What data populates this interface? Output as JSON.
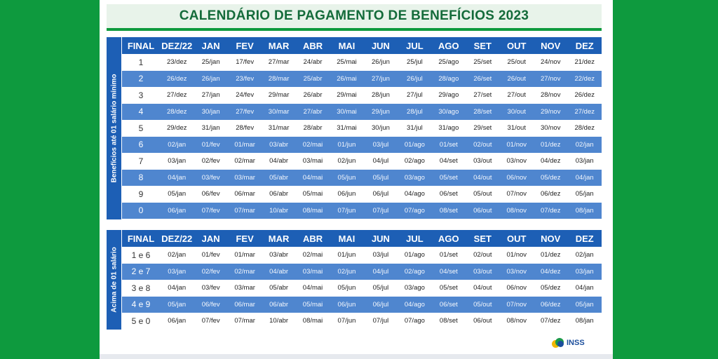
{
  "title": "CALENDÁRIO DE PAGAMENTO DE BENEFÍCIOS 2023",
  "logo_text": "INSS",
  "headers": [
    "FINAL",
    "DEZ/22",
    "JAN",
    "FEV",
    "MAR",
    "ABR",
    "MAI",
    "JUN",
    "JUL",
    "AGO",
    "SET",
    "OUT",
    "NOV",
    "DEZ"
  ],
  "table1": {
    "side_label": "Benefícios até 01 salário mínimo",
    "rows": [
      [
        "1",
        "23/dez",
        "25/jan",
        "17/fev",
        "27/mar",
        "24/abr",
        "25/mai",
        "26/jun",
        "25/jul",
        "25/ago",
        "25/set",
        "25/out",
        "24/nov",
        "21/dez"
      ],
      [
        "2",
        "26/dez",
        "26/jan",
        "23/fev",
        "28/mar",
        "25/abr",
        "26/mai",
        "27/jun",
        "26/jul",
        "28/ago",
        "26/set",
        "26/out",
        "27/nov",
        "22/dez"
      ],
      [
        "3",
        "27/dez",
        "27/jan",
        "24/fev",
        "29/mar",
        "26/abr",
        "29/mai",
        "28/jun",
        "27/jul",
        "29/ago",
        "27/set",
        "27/out",
        "28/nov",
        "26/dez"
      ],
      [
        "4",
        "28/dez",
        "30/jan",
        "27/fev",
        "30/mar",
        "27/abr",
        "30/mai",
        "29/jun",
        "28/jul",
        "30/ago",
        "28/set",
        "30/out",
        "29/nov",
        "27/dez"
      ],
      [
        "5",
        "29/dez",
        "31/jan",
        "28/fev",
        "31/mar",
        "28/abr",
        "31/mai",
        "30/jun",
        "31/jul",
        "31/ago",
        "29/set",
        "31/out",
        "30/nov",
        "28/dez"
      ],
      [
        "6",
        "02/jan",
        "01/fev",
        "01/mar",
        "03/abr",
        "02/mai",
        "01/jun",
        "03/jul",
        "01/ago",
        "01/set",
        "02/out",
        "01/nov",
        "01/dez",
        "02/jan"
      ],
      [
        "7",
        "03/jan",
        "02/fev",
        "02/mar",
        "04/abr",
        "03/mai",
        "02/jun",
        "04/jul",
        "02/ago",
        "04/set",
        "03/out",
        "03/nov",
        "04/dez",
        "03/jan"
      ],
      [
        "8",
        "04/jan",
        "03/fev",
        "03/mar",
        "05/abr",
        "04/mai",
        "05/jun",
        "05/jul",
        "03/ago",
        "05/set",
        "04/out",
        "06/nov",
        "05/dez",
        "04/jan"
      ],
      [
        "9",
        "05/jan",
        "06/fev",
        "06/mar",
        "06/abr",
        "05/mai",
        "06/jun",
        "06/jul",
        "04/ago",
        "06/set",
        "05/out",
        "07/nov",
        "06/dez",
        "05/jan"
      ],
      [
        "0",
        "06/jan",
        "07/fev",
        "07/mar",
        "10/abr",
        "08/mai",
        "07/jun",
        "07/jul",
        "07/ago",
        "08/set",
        "06/out",
        "08/nov",
        "07/dez",
        "08/jan"
      ]
    ]
  },
  "table2": {
    "side_label": "Acima de 01 salário",
    "rows": [
      [
        "1 e 6",
        "02/jan",
        "01/fev",
        "01/mar",
        "03/abr",
        "02/mai",
        "01/jun",
        "03/jul",
        "01/ago",
        "01/set",
        "02/out",
        "01/nov",
        "01/dez",
        "02/jan"
      ],
      [
        "2 e 7",
        "03/jan",
        "02/fev",
        "02/mar",
        "04/abr",
        "03/mai",
        "02/jun",
        "04/jul",
        "02/ago",
        "04/set",
        "03/out",
        "03/nov",
        "04/dez",
        "03/jan"
      ],
      [
        "3 e 8",
        "04/jan",
        "03/fev",
        "03/mar",
        "05/abr",
        "04/mai",
        "05/jun",
        "05/jul",
        "03/ago",
        "05/set",
        "04/out",
        "06/nov",
        "05/dez",
        "04/jan"
      ],
      [
        "4 e 9",
        "05/jan",
        "06/fev",
        "06/mar",
        "06/abr",
        "05/mai",
        "06/jun",
        "06/jul",
        "04/ago",
        "06/set",
        "05/out",
        "07/nov",
        "06/dez",
        "05/jan"
      ],
      [
        "5 e 0",
        "06/jan",
        "07/fev",
        "07/mar",
        "10/abr",
        "08/mai",
        "07/jun",
        "07/jul",
        "07/ago",
        "08/set",
        "06/out",
        "08/nov",
        "07/dez",
        "08/jan"
      ]
    ]
  },
  "colors": {
    "background_green": "#0e9a3e",
    "title_text": "#146b3a",
    "header_blue": "#1d5fb5",
    "stripe_blue": "#4f86cf"
  }
}
